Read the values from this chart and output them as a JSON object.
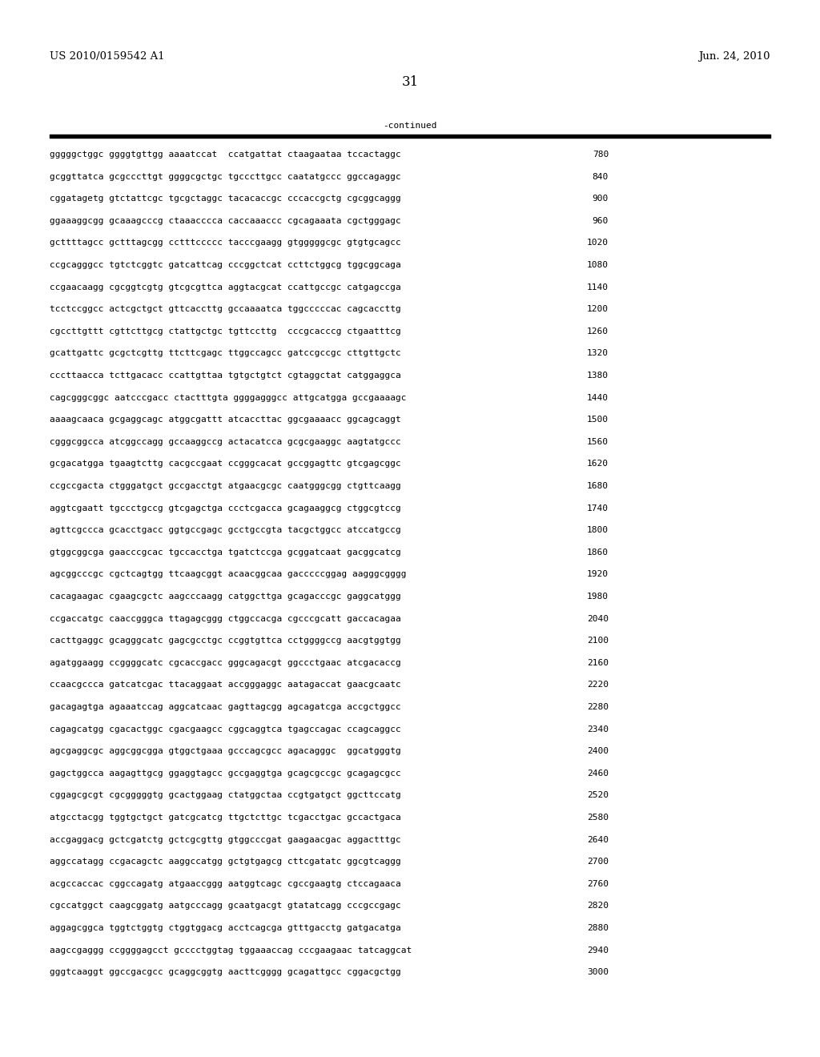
{
  "patent_number": "US 2010/0159542 A1",
  "date": "Jun. 24, 2010",
  "page_number": "31",
  "continued_label": "-continued",
  "background_color": "#ffffff",
  "text_color": "#000000",
  "font_size_header": 9.5,
  "font_size_sequence": 8.0,
  "font_size_page": 12,
  "sequences": [
    [
      "gggggctggc ggggtgttgg aaaatccat  ccatgattat ctaagaataa tccactaggc",
      "780"
    ],
    [
      "gcggttatca gcgcccttgt ggggcgctgc tgcccttgcc caatatgccc ggccagaggc",
      "840"
    ],
    [
      "cggatagetg gtctattcgc tgcgctaggc tacacaccgc cccaccgctg cgcggcaggg",
      "900"
    ],
    [
      "ggaaaggcgg gcaaagcccg ctaaacccca caccaaaccc cgcagaaata cgctgggagc",
      "960"
    ],
    [
      "gcttttagcc gctttagcgg cctttccccc tacccgaagg gtgggggcgc gtgtgcagcc",
      "1020"
    ],
    [
      "ccgcagggcc tgtctcggtc gatcattcag cccggctcat ccttctggcg tggcggcaga",
      "1080"
    ],
    [
      "ccgaacaagg cgcggtcgtg gtcgcgttca aggtacgcat ccattgccgc catgagccga",
      "1140"
    ],
    [
      "tcctccggcc actcgctgct gttcaccttg gccaaaatca tggcccccac cagcaccttg",
      "1200"
    ],
    [
      "cgccttgttt cgttcttgcg ctattgctgc tgttccttg  cccgcacccg ctgaatttcg",
      "1260"
    ],
    [
      "gcattgattc gcgctcgttg ttcttcgagc ttggccagcc gatccgccgc cttgttgctc",
      "1320"
    ],
    [
      "cccttaacca tcttgacacc ccattgttaa tgtgctgtct cgtaggctat catggaggca",
      "1380"
    ],
    [
      "cagcgggcggc aatcccgacc ctactttgta ggggagggcc attgcatgga gccgaaaagc",
      "1440"
    ],
    [
      "aaaagcaaca gcgaggcagc atggcgattt atcaccttac ggcgaaaacc ggcagcaggt",
      "1500"
    ],
    [
      "cgggcggcca atcggccagg gccaaggccg actacatcca gcgcgaaggc aagtatgccc",
      "1560"
    ],
    [
      "gcgacatgga tgaagtcttg cacgccgaat ccgggcacat gccggagttc gtcgagcggc",
      "1620"
    ],
    [
      "ccgccgacta ctgggatgct gccgacctgt atgaacgcgc caatgggcgg ctgttcaagg",
      "1680"
    ],
    [
      "aggtcgaatt tgccctgccg gtcgagctga ccctcgacca gcagaaggcg ctggcgtccg",
      "1740"
    ],
    [
      "agttcgccca gcacctgacc ggtgccgagc gcctgccgta tacgctggcc atccatgccg",
      "1800"
    ],
    [
      "gtggcggcga gaacccgcac tgccacctga tgatctccga gcggatcaat gacggcatcg",
      "1860"
    ],
    [
      "agcggcccgc cgctcagtgg ttcaagcggt acaacggcaa gacccccggag aagggcgggg",
      "1920"
    ],
    [
      "cacagaagac cgaagcgctc aagcccaagg catggcttga gcagacccgc gaggcatggg",
      "1980"
    ],
    [
      "ccgaccatgc caaccgggca ttagagcggg ctggccacga cgcccgcatt gaccacagaa",
      "2040"
    ],
    [
      "cacttgaggc gcagggcatc gagcgcctgc ccggtgttca cctggggccg aacgtggtgg",
      "2100"
    ],
    [
      "agatggaagg ccggggcatc cgcaccgacc gggcagacgt ggccctgaac atcgacaccg",
      "2160"
    ],
    [
      "ccaacgccca gatcatcgac ttacaggaat accgggaggc aatagaccat gaacgcaatc",
      "2220"
    ],
    [
      "gacagagtga agaaatccag aggcatcaac gagttagcgg agcagatcga accgctggcc",
      "2280"
    ],
    [
      "cagagcatgg cgacactggc cgacgaagcc cggcaggtca tgagccagac ccagcaggcc",
      "2340"
    ],
    [
      "agcgaggcgc aggcggcgga gtggctgaaa gcccagcgcc agacagggc  ggcatgggtg",
      "2400"
    ],
    [
      "gagctggcca aagagttgcg ggaggtagcc gccgaggtga gcagcgccgc gcagagcgcc",
      "2460"
    ],
    [
      "cggagcgcgt cgcgggggtg gcactggaag ctatggctaa ccgtgatgct ggcttccatg",
      "2520"
    ],
    [
      "atgcctacgg tggtgctgct gatcgcatcg ttgctcttgc tcgacctgac gccactgaca",
      "2580"
    ],
    [
      "accgaggacg gctcgatctg gctcgcgttg gtggcccgat gaagaacgac aggactttgc",
      "2640"
    ],
    [
      "aggccatagg ccgacagctc aaggccatgg gctgtgagcg cttcgatatc ggcgtcaggg",
      "2700"
    ],
    [
      "acgccaccac cggccagatg atgaaccggg aatggtcagc cgccgaagtg ctccagaaca",
      "2760"
    ],
    [
      "cgccatggct caagcggatg aatgcccagg gcaatgacgt gtatatcagg cccgccgagc",
      "2820"
    ],
    [
      "aggagcggca tggtctggtg ctggtggacg acctcagcga gtttgacctg gatgacatga",
      "2880"
    ],
    [
      "aagccgaggg ccggggagcct gcccctggtag tggaaaccag cccgaagaac tatcaggcat",
      "2940"
    ],
    [
      "gggtcaaggt ggccgacgcc gcaggcggtg aacttcgggg gcagattgcc cggacgctgg",
      "3000"
    ]
  ]
}
